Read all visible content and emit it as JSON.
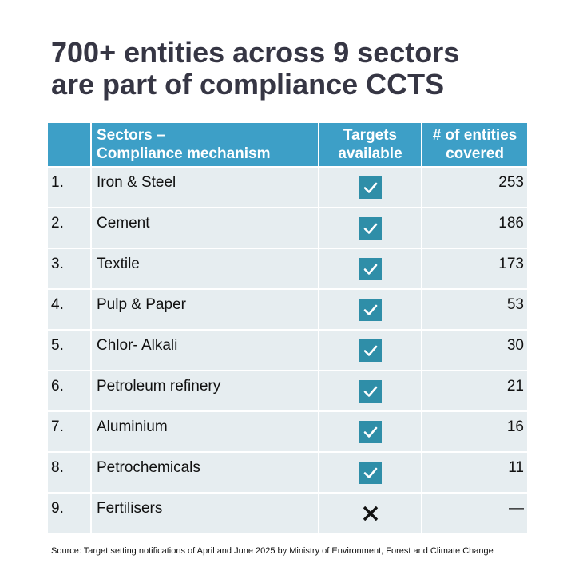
{
  "title": {
    "line1": "700+ entities across 9 sectors",
    "line2": "are part of compliance CCTS"
  },
  "table": {
    "headers": {
      "sectors_line1": "Sectors –",
      "sectors_line2": "Compliance mechanism",
      "targets_line1": "Targets",
      "targets_line2": "available",
      "entities_line1": "# of entities",
      "entities_line2": "covered"
    },
    "rows": [
      {
        "num": "1.",
        "sector": "Iron & Steel",
        "target": "check",
        "count": "253"
      },
      {
        "num": "2.",
        "sector": "Cement",
        "target": "check",
        "count": "186"
      },
      {
        "num": "3.",
        "sector": "Textile",
        "target": "check",
        "count": "173"
      },
      {
        "num": "4.",
        "sector": "Pulp & Paper",
        "target": "check",
        "count": "53"
      },
      {
        "num": "5.",
        "sector": "Chlor- Alkali",
        "target": "check",
        "count": "30"
      },
      {
        "num": "6.",
        "sector": "Petroleum refinery",
        "target": "check",
        "count": "21"
      },
      {
        "num": "7.",
        "sector": "Aluminium",
        "target": "check",
        "count": "16"
      },
      {
        "num": "8.",
        "sector": "Petrochemicals",
        "target": "check",
        "count": "11"
      },
      {
        "num": "9.",
        "sector": "Fertilisers",
        "target": "cross",
        "count": "—"
      }
    ]
  },
  "colors": {
    "header_bg": "#3d9fc7",
    "row_bg": "#e6edf0",
    "check_bg": "#2f8ea8",
    "title": "#363644"
  },
  "source": "Source: Target setting notifications of April and June 2025 by Ministry of Environment, Forest and Climate Change"
}
